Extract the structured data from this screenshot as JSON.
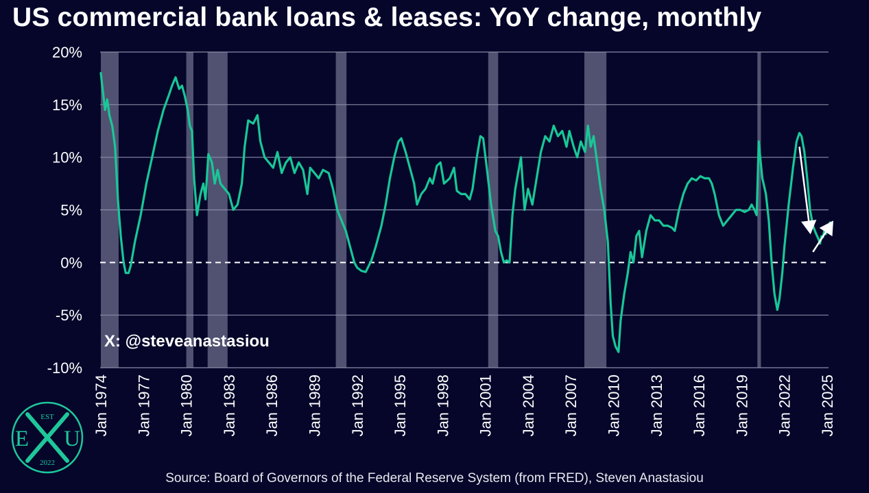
{
  "chart_data": {
    "type": "line",
    "title": "US commercial bank loans & leases: YoY change, monthly",
    "source": "Source: Board of Governors of the Federal Reserve System (from FRED), Steven Anastasiou",
    "watermark": "X: @steveanastasiou",
    "ylim": [
      -10,
      20
    ],
    "xlim": [
      1974.0,
      2025.2
    ],
    "y_ticks": [
      20,
      15,
      10,
      5,
      0,
      -5,
      -10
    ],
    "y_tick_labels": [
      "20%",
      "15%",
      "10%",
      "5%",
      "0%",
      "-5%",
      "-10%"
    ],
    "x_ticks": [
      1974,
      1977,
      1980,
      1983,
      1986,
      1989,
      1992,
      1995,
      1998,
      2001,
      2004,
      2007,
      2010,
      2013,
      2016,
      2019,
      2022,
      2025
    ],
    "x_tick_labels": [
      "Jan 1974",
      "Jan 1977",
      "Jan 1980",
      "Jan 1983",
      "Jan 1986",
      "Jan 1989",
      "Jan 1992",
      "Jan 1995",
      "Jan 1998",
      "Jan 2001",
      "Jan 2004",
      "Jan 2007",
      "Jan 2010",
      "Jan 2013",
      "Jan 2016",
      "Jan 2019",
      "Jan 2022",
      "Jan 2025"
    ],
    "zero_line": {
      "value": 0,
      "style": "dashed"
    },
    "recessions": [
      [
        1974.0,
        1975.25
      ],
      [
        1980.0,
        1980.5
      ],
      [
        1981.5,
        1982.9
      ],
      [
        1990.5,
        1991.25
      ],
      [
        2001.2,
        2001.9
      ],
      [
        2007.95,
        2009.5
      ],
      [
        2020.1,
        2020.35
      ]
    ],
    "annotations": [
      {
        "type": "arrow",
        "direction": "down",
        "from": [
          2023.05,
          11.0
        ],
        "to": [
          2023.8,
          3.0
        ]
      },
      {
        "type": "arrow",
        "direction": "up",
        "from": [
          2024.0,
          1.0
        ],
        "to": [
          2025.3,
          3.7
        ]
      }
    ],
    "series": [
      {
        "color": "#19c797",
        "points": [
          [
            1974.0,
            18.0
          ],
          [
            1974.15,
            16.2
          ],
          [
            1974.3,
            14.5
          ],
          [
            1974.45,
            15.5
          ],
          [
            1974.6,
            14.0
          ],
          [
            1974.8,
            13.0
          ],
          [
            1975.0,
            11.0
          ],
          [
            1975.2,
            6.0
          ],
          [
            1975.4,
            2.5
          ],
          [
            1975.6,
            0.0
          ],
          [
            1975.75,
            -1.0
          ],
          [
            1975.95,
            -1.0
          ],
          [
            1976.1,
            -0.3
          ],
          [
            1976.4,
            2.0
          ],
          [
            1976.8,
            4.5
          ],
          [
            1977.2,
            7.5
          ],
          [
            1977.6,
            10.0
          ],
          [
            1978.0,
            12.5
          ],
          [
            1978.4,
            14.5
          ],
          [
            1978.8,
            16.0
          ],
          [
            1979.0,
            16.8
          ],
          [
            1979.25,
            17.6
          ],
          [
            1979.5,
            16.5
          ],
          [
            1979.7,
            16.8
          ],
          [
            1979.9,
            15.8
          ],
          [
            1980.1,
            14.5
          ],
          [
            1980.25,
            13.0
          ],
          [
            1980.4,
            12.5
          ],
          [
            1980.55,
            8.0
          ],
          [
            1980.75,
            4.5
          ],
          [
            1981.0,
            6.5
          ],
          [
            1981.2,
            7.5
          ],
          [
            1981.35,
            6.0
          ],
          [
            1981.55,
            10.3
          ],
          [
            1981.8,
            9.5
          ],
          [
            1982.0,
            7.5
          ],
          [
            1982.2,
            8.8
          ],
          [
            1982.4,
            7.5
          ],
          [
            1982.7,
            7.0
          ],
          [
            1983.0,
            6.5
          ],
          [
            1983.3,
            5.0
          ],
          [
            1983.6,
            5.5
          ],
          [
            1983.9,
            7.5
          ],
          [
            1984.1,
            11.0
          ],
          [
            1984.35,
            13.5
          ],
          [
            1984.7,
            13.2
          ],
          [
            1985.0,
            14.0
          ],
          [
            1985.2,
            11.5
          ],
          [
            1985.5,
            10.0
          ],
          [
            1985.8,
            9.5
          ],
          [
            1986.1,
            9.0
          ],
          [
            1986.4,
            10.5
          ],
          [
            1986.7,
            8.5
          ],
          [
            1987.0,
            9.5
          ],
          [
            1987.3,
            10.0
          ],
          [
            1987.6,
            8.5
          ],
          [
            1987.9,
            9.5
          ],
          [
            1988.2,
            8.8
          ],
          [
            1988.5,
            6.5
          ],
          [
            1988.7,
            9.0
          ],
          [
            1989.0,
            8.5
          ],
          [
            1989.3,
            8.0
          ],
          [
            1989.6,
            8.8
          ],
          [
            1990.0,
            8.5
          ],
          [
            1990.3,
            7.0
          ],
          [
            1990.6,
            5.0
          ],
          [
            1990.9,
            4.0
          ],
          [
            1991.2,
            3.0
          ],
          [
            1991.5,
            1.5
          ],
          [
            1991.8,
            0.0
          ],
          [
            1992.0,
            -0.5
          ],
          [
            1992.3,
            -0.8
          ],
          [
            1992.6,
            -0.9
          ],
          [
            1993.0,
            0.2
          ],
          [
            1993.3,
            1.5
          ],
          [
            1993.7,
            3.5
          ],
          [
            1994.0,
            5.5
          ],
          [
            1994.3,
            8.0
          ],
          [
            1994.6,
            10.0
          ],
          [
            1994.9,
            11.5
          ],
          [
            1995.1,
            11.8
          ],
          [
            1995.4,
            10.5
          ],
          [
            1995.7,
            9.0
          ],
          [
            1996.0,
            7.5
          ],
          [
            1996.2,
            5.5
          ],
          [
            1996.5,
            6.5
          ],
          [
            1996.8,
            7.0
          ],
          [
            1997.1,
            8.0
          ],
          [
            1997.3,
            7.5
          ],
          [
            1997.6,
            9.2
          ],
          [
            1997.85,
            9.5
          ],
          [
            1998.1,
            7.5
          ],
          [
            1998.5,
            8.0
          ],
          [
            1998.8,
            9.0
          ],
          [
            1999.0,
            6.8
          ],
          [
            1999.3,
            6.5
          ],
          [
            1999.6,
            6.5
          ],
          [
            1999.9,
            6.0
          ],
          [
            2000.1,
            7.0
          ],
          [
            2000.4,
            10.0
          ],
          [
            2000.65,
            12.0
          ],
          [
            2000.85,
            11.8
          ],
          [
            2001.1,
            9.0
          ],
          [
            2001.4,
            5.5
          ],
          [
            2001.7,
            3.0
          ],
          [
            2001.9,
            2.5
          ],
          [
            2002.1,
            1.0
          ],
          [
            2002.3,
            0.0
          ],
          [
            2002.5,
            0.2
          ],
          [
            2002.7,
            0.0
          ],
          [
            2002.9,
            4.5
          ],
          [
            2003.1,
            7.0
          ],
          [
            2003.3,
            8.5
          ],
          [
            2003.5,
            10.0
          ],
          [
            2003.75,
            5.0
          ],
          [
            2004.0,
            7.0
          ],
          [
            2004.3,
            5.5
          ],
          [
            2004.6,
            8.0
          ],
          [
            2004.9,
            10.5
          ],
          [
            2005.2,
            12.0
          ],
          [
            2005.5,
            11.5
          ],
          [
            2005.8,
            13.0
          ],
          [
            2006.1,
            12.0
          ],
          [
            2006.4,
            12.5
          ],
          [
            2006.7,
            11.0
          ],
          [
            2006.9,
            12.5
          ],
          [
            2007.2,
            11.0
          ],
          [
            2007.45,
            10.0
          ],
          [
            2007.7,
            11.5
          ],
          [
            2008.0,
            10.5
          ],
          [
            2008.2,
            13.0
          ],
          [
            2008.4,
            11.0
          ],
          [
            2008.6,
            12.0
          ],
          [
            2008.8,
            10.0
          ],
          [
            2009.1,
            7.0
          ],
          [
            2009.35,
            5.0
          ],
          [
            2009.6,
            2.0
          ],
          [
            2009.8,
            -4.0
          ],
          [
            2009.95,
            -7.0
          ],
          [
            2010.15,
            -8.0
          ],
          [
            2010.35,
            -8.5
          ],
          [
            2010.5,
            -5.5
          ],
          [
            2010.75,
            -3.0
          ],
          [
            2011.0,
            -1.0
          ],
          [
            2011.2,
            1.0
          ],
          [
            2011.4,
            0.0
          ],
          [
            2011.6,
            2.5
          ],
          [
            2011.8,
            3.0
          ],
          [
            2012.0,
            0.5
          ],
          [
            2012.3,
            3.0
          ],
          [
            2012.6,
            4.5
          ],
          [
            2012.9,
            4.0
          ],
          [
            2013.2,
            4.0
          ],
          [
            2013.5,
            3.5
          ],
          [
            2013.8,
            3.5
          ],
          [
            2014.1,
            3.3
          ],
          [
            2014.3,
            3.0
          ],
          [
            2014.6,
            5.0
          ],
          [
            2014.9,
            6.5
          ],
          [
            2015.2,
            7.5
          ],
          [
            2015.5,
            8.0
          ],
          [
            2015.8,
            7.8
          ],
          [
            2016.1,
            8.2
          ],
          [
            2016.4,
            8.0
          ],
          [
            2016.7,
            8.0
          ],
          [
            2016.9,
            7.5
          ],
          [
            2017.1,
            6.5
          ],
          [
            2017.4,
            4.5
          ],
          [
            2017.7,
            3.5
          ],
          [
            2018.0,
            4.0
          ],
          [
            2018.3,
            4.5
          ],
          [
            2018.6,
            5.0
          ],
          [
            2018.9,
            5.0
          ],
          [
            2019.2,
            4.8
          ],
          [
            2019.5,
            5.0
          ],
          [
            2019.7,
            5.5
          ],
          [
            2019.9,
            5.0
          ],
          [
            2020.05,
            4.5
          ],
          [
            2020.2,
            11.5
          ],
          [
            2020.3,
            10.0
          ],
          [
            2020.45,
            8.0
          ],
          [
            2020.7,
            6.5
          ],
          [
            2020.9,
            4.0
          ],
          [
            2021.1,
            0.0
          ],
          [
            2021.3,
            -3.0
          ],
          [
            2021.5,
            -4.5
          ],
          [
            2021.65,
            -3.5
          ],
          [
            2021.85,
            -1.0
          ],
          [
            2022.0,
            1.5
          ],
          [
            2022.3,
            5.5
          ],
          [
            2022.6,
            9.0
          ],
          [
            2022.85,
            11.5
          ],
          [
            2023.05,
            12.3
          ],
          [
            2023.2,
            12.0
          ],
          [
            2023.4,
            10.5
          ],
          [
            2023.6,
            8.0
          ],
          [
            2023.8,
            5.0
          ],
          [
            2024.0,
            3.5
          ],
          [
            2024.2,
            2.8
          ],
          [
            2024.4,
            2.2
          ],
          [
            2024.5,
            1.8
          ],
          [
            2024.6,
            2.5
          ],
          [
            2024.7,
            2.4
          ],
          [
            2024.8,
            3.0
          ],
          [
            2024.9,
            2.7
          ],
          [
            2025.0,
            3.2
          ],
          [
            2025.1,
            3.5
          ],
          [
            2025.2,
            3.8
          ]
        ]
      }
    ]
  },
  "logo": {
    "top_text": "EST",
    "left_letter": "E",
    "right_letter": "U",
    "bottom_text": "2022"
  }
}
